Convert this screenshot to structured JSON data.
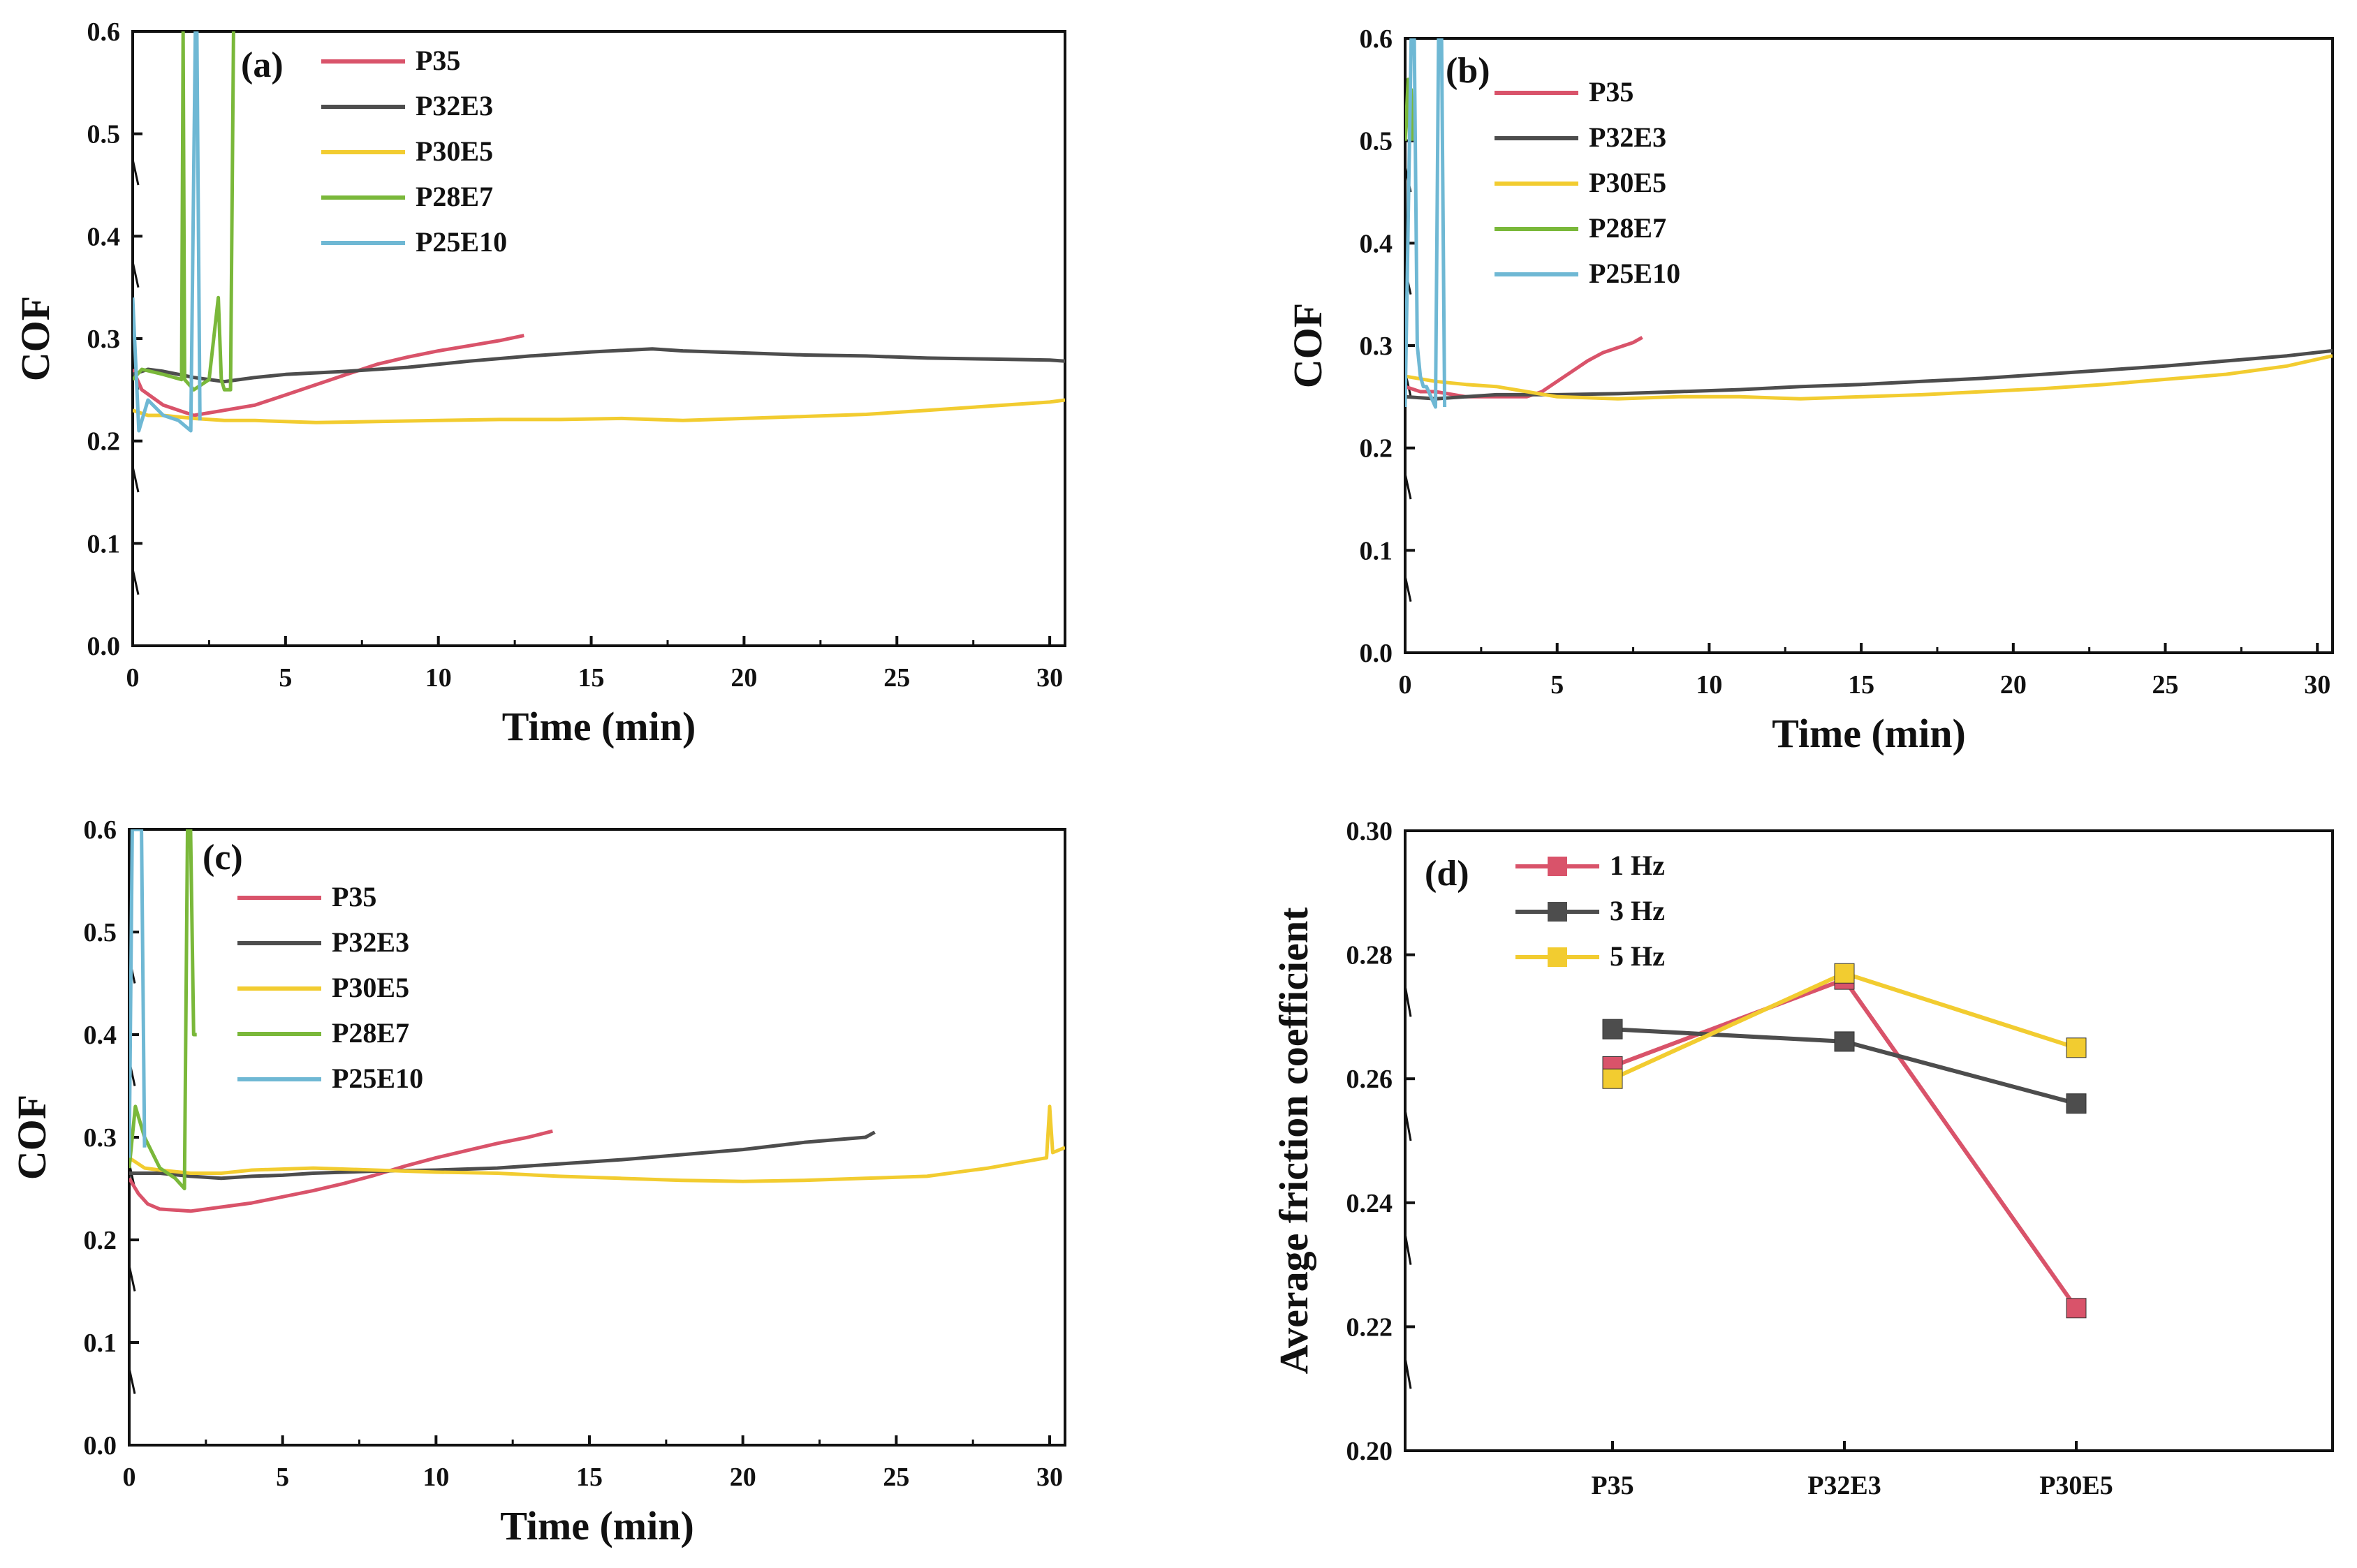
{
  "colors": {
    "P35": "#d9536a",
    "P32E3": "#4d4d4d",
    "P30E5": "#f2cc30",
    "P28E7": "#7ab83a",
    "P25E10": "#6fb8d4",
    "1 Hz": "#d9536a",
    "3 Hz": "#4d4d4d",
    "5 Hz": "#f2cc30",
    "axis": "#111111"
  },
  "chart_data": [
    {
      "panel": "(a)",
      "type": "line",
      "xlabel": "Time (min)",
      "ylabel": "COF",
      "xlim": [
        0,
        30.5
      ],
      "ylim": [
        0,
        0.6
      ],
      "xticks": [
        "0",
        "5",
        "10",
        "15",
        "20",
        "25",
        "30"
      ],
      "yticks": [
        "0.0",
        "0.1",
        "0.2",
        "0.3",
        "0.4",
        "0.5",
        "0.6"
      ],
      "legend": [
        "P35",
        "P32E3",
        "P30E5",
        "P28E7",
        "P25E10"
      ],
      "series": [
        {
          "name": "P35",
          "x": [
            0,
            0.3,
            1,
            2,
            3,
            4,
            5,
            6,
            7,
            8,
            9,
            10,
            11,
            12,
            12.8
          ],
          "y": [
            0.27,
            0.25,
            0.235,
            0.225,
            0.23,
            0.235,
            0.245,
            0.255,
            0.265,
            0.275,
            0.282,
            0.288,
            0.293,
            0.298,
            0.303
          ]
        },
        {
          "name": "P32E3",
          "x": [
            0,
            0.5,
            1,
            2,
            3,
            4,
            5,
            7,
            9,
            11,
            13,
            15,
            17,
            18,
            20,
            22,
            24,
            26,
            28,
            30,
            30.5
          ],
          "y": [
            0.265,
            0.27,
            0.268,
            0.262,
            0.258,
            0.262,
            0.265,
            0.268,
            0.272,
            0.278,
            0.283,
            0.287,
            0.29,
            0.288,
            0.286,
            0.284,
            0.283,
            0.281,
            0.28,
            0.279,
            0.278
          ]
        },
        {
          "name": "P30E5",
          "x": [
            0,
            0.5,
            1,
            2,
            3,
            4,
            6,
            8,
            10,
            12,
            14,
            16,
            18,
            20,
            22,
            24,
            26,
            28,
            30,
            30.5
          ],
          "y": [
            0.23,
            0.225,
            0.225,
            0.222,
            0.22,
            0.22,
            0.218,
            0.219,
            0.22,
            0.221,
            0.221,
            0.222,
            0.22,
            0.222,
            0.224,
            0.226,
            0.23,
            0.234,
            0.238,
            0.24
          ]
        },
        {
          "name": "P28E7",
          "x": [
            0,
            0.3,
            1,
            1.6,
            1.65,
            1.7,
            2.0,
            2.5,
            2.8,
            2.9,
            3.0,
            3.2,
            3.3
          ],
          "y": [
            0.26,
            0.27,
            0.265,
            0.26,
            0.6,
            0.26,
            0.25,
            0.26,
            0.34,
            0.26,
            0.25,
            0.25,
            0.6
          ]
        },
        {
          "name": "P25E10",
          "x": [
            0,
            0.2,
            0.5,
            1,
            1.5,
            1.9,
            2.05,
            2.1,
            2.2
          ],
          "y": [
            0.34,
            0.21,
            0.24,
            0.225,
            0.22,
            0.21,
            0.6,
            0.6,
            0.22
          ]
        }
      ]
    },
    {
      "panel": "(b)",
      "type": "line",
      "xlabel": "Time (min)",
      "ylabel": "COF",
      "xlim": [
        0,
        30.5
      ],
      "ylim": [
        0,
        0.6
      ],
      "xticks": [
        "0",
        "5",
        "10",
        "15",
        "20",
        "25",
        "30"
      ],
      "yticks": [
        "0.0",
        "0.1",
        "0.2",
        "0.3",
        "0.4",
        "0.5",
        "0.6"
      ],
      "legend": [
        "P35",
        "P32E3",
        "P30E5",
        "P28E7",
        "P25E10"
      ],
      "series": [
        {
          "name": "P35",
          "x": [
            0,
            0.5,
            1,
            2,
            3,
            4,
            4.5,
            5,
            5.5,
            6,
            6.5,
            7,
            7.5,
            7.8
          ],
          "y": [
            0.26,
            0.255,
            0.255,
            0.25,
            0.25,
            0.25,
            0.255,
            0.265,
            0.275,
            0.285,
            0.293,
            0.298,
            0.303,
            0.308
          ]
        },
        {
          "name": "P32E3",
          "x": [
            0,
            1,
            2,
            3,
            4,
            5,
            7,
            9,
            11,
            13,
            15,
            17,
            19,
            21,
            23,
            25,
            27,
            29,
            30.5
          ],
          "y": [
            0.25,
            0.248,
            0.25,
            0.252,
            0.252,
            0.252,
            0.253,
            0.255,
            0.257,
            0.26,
            0.262,
            0.265,
            0.268,
            0.272,
            0.276,
            0.28,
            0.285,
            0.29,
            0.295
          ]
        },
        {
          "name": "P30E5",
          "x": [
            0,
            1,
            2,
            3,
            4,
            5,
            7,
            9,
            11,
            13,
            15,
            17,
            19,
            21,
            23,
            25,
            27,
            29,
            30.5
          ],
          "y": [
            0.27,
            0.265,
            0.262,
            0.26,
            0.255,
            0.25,
            0.248,
            0.25,
            0.25,
            0.248,
            0.25,
            0.252,
            0.255,
            0.258,
            0.262,
            0.267,
            0.272,
            0.28,
            0.29
          ]
        },
        {
          "name": "P28E7",
          "x": [
            0,
            0.1,
            0.15,
            0.2,
            0.25
          ],
          "y": [
            0.5,
            0.56,
            0.5,
            0.55,
            0.5
          ]
        },
        {
          "name": "P25E10",
          "x": [
            0,
            0.2,
            0.3,
            0.4,
            0.5,
            0.6,
            0.7,
            1.0,
            1.1,
            1.2,
            1.3
          ],
          "y": [
            0.24,
            0.6,
            0.6,
            0.3,
            0.27,
            0.26,
            0.26,
            0.24,
            0.6,
            0.6,
            0.24
          ]
        }
      ]
    },
    {
      "panel": "(c)",
      "type": "line",
      "xlabel": "Time (min)",
      "ylabel": "COF",
      "xlim": [
        0,
        30.5
      ],
      "ylim": [
        0,
        0.6
      ],
      "xticks": [
        "0",
        "5",
        "10",
        "15",
        "20",
        "25",
        "30"
      ],
      "yticks": [
        "0.0",
        "0.1",
        "0.2",
        "0.3",
        "0.4",
        "0.5",
        "0.6"
      ],
      "legend": [
        "P35",
        "P32E3",
        "P30E5",
        "P28E7",
        "P25E10"
      ],
      "series": [
        {
          "name": "P35",
          "x": [
            0,
            0.3,
            0.6,
            1,
            2,
            3,
            4,
            5,
            6,
            7,
            8,
            9,
            10,
            11,
            12,
            13,
            13.8
          ],
          "y": [
            0.26,
            0.245,
            0.235,
            0.23,
            0.228,
            0.232,
            0.236,
            0.242,
            0.248,
            0.255,
            0.263,
            0.272,
            0.28,
            0.287,
            0.294,
            0.3,
            0.306
          ]
        },
        {
          "name": "P32E3",
          "x": [
            0,
            1,
            2,
            3,
            4,
            5,
            6,
            8,
            10,
            12,
            14,
            16,
            18,
            20,
            22,
            24,
            24.3
          ],
          "y": [
            0.265,
            0.265,
            0.262,
            0.26,
            0.262,
            0.263,
            0.265,
            0.267,
            0.268,
            0.27,
            0.274,
            0.278,
            0.283,
            0.288,
            0.295,
            0.3,
            0.305
          ]
        },
        {
          "name": "P30E5",
          "x": [
            0,
            0.5,
            1,
            2,
            3,
            4,
            6,
            8,
            10,
            12,
            14,
            16,
            18,
            20,
            22,
            24,
            26,
            28,
            29.9,
            30,
            30.1,
            30.5
          ],
          "y": [
            0.28,
            0.27,
            0.268,
            0.265,
            0.265,
            0.268,
            0.27,
            0.268,
            0.266,
            0.265,
            0.262,
            0.26,
            0.258,
            0.257,
            0.258,
            0.26,
            0.262,
            0.27,
            0.28,
            0.33,
            0.285,
            0.29
          ]
        },
        {
          "name": "P28E7",
          "x": [
            0,
            0.2,
            0.5,
            1,
            1.5,
            1.8,
            1.9,
            2.0,
            2.1,
            2.2
          ],
          "y": [
            0.27,
            0.33,
            0.3,
            0.27,
            0.26,
            0.25,
            0.6,
            0.6,
            0.4,
            0.4
          ]
        },
        {
          "name": "P25E10",
          "x": [
            0,
            0.1,
            0.2,
            0.3,
            0.4,
            0.5
          ],
          "y": [
            0.28,
            0.6,
            0.6,
            0.6,
            0.6,
            0.29
          ]
        }
      ]
    },
    {
      "panel": "(d)",
      "type": "line",
      "xlabel": "",
      "ylabel": "Average friction coefficient",
      "categories": [
        "P35",
        "P32E3",
        "P30E5"
      ],
      "ylim": [
        0.2,
        0.3
      ],
      "yticks": [
        "0.20",
        "0.22",
        "0.24",
        "0.26",
        "0.28",
        "0.30"
      ],
      "legend": [
        "1 Hz",
        "3 Hz",
        "5 Hz"
      ],
      "series": [
        {
          "name": "1 Hz",
          "values": [
            0.262,
            0.276,
            0.223
          ]
        },
        {
          "name": "3 Hz",
          "values": [
            0.268,
            0.266,
            0.256
          ]
        },
        {
          "name": "5 Hz",
          "values": [
            0.26,
            0.277,
            0.265
          ]
        }
      ]
    }
  ]
}
